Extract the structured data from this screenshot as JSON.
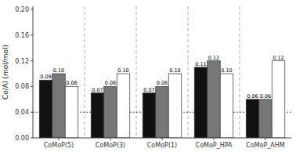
{
  "chart_data": {
    "type": "bar",
    "ylabel": "Co/Al (mol/mol)",
    "categories": [
      "CoMoP(5)",
      "CoMoP(3)",
      "CoMoP(1)",
      "CoMoP_HPA",
      "CoMoP_AHM"
    ],
    "series": [
      {
        "color": "#111111",
        "values": [
          0.09,
          0.07,
          0.07,
          0.11,
          0.06
        ],
        "value_labels": [
          "0.09",
          "0.07",
          "0.07",
          "0.11",
          "0.06"
        ]
      },
      {
        "color": "#777777",
        "values": [
          0.1,
          0.08,
          0.08,
          0.12,
          0.06
        ],
        "value_labels": [
          "0.10",
          "0.08",
          "0.08",
          "0.12",
          "0.06"
        ]
      },
      {
        "color": "#ffffff",
        "values": [
          0.08,
          0.1,
          0.1,
          0.1,
          0.12
        ],
        "value_labels": [
          "0.08",
          "0.10",
          "0.10",
          "0.10",
          "0.12"
        ]
      }
    ],
    "reference_line": {
      "value": 0.04,
      "line_style": "dotted"
    },
    "ylim": [
      0.0,
      0.205
    ],
    "yticks": [
      {
        "value": 0,
        "label": "0.00"
      },
      0.04,
      0.08,
      0.12,
      0.16,
      {
        "value": 0.2,
        "label": "0.20"
      }
    ],
    "data_labels": true,
    "grid": false
  }
}
